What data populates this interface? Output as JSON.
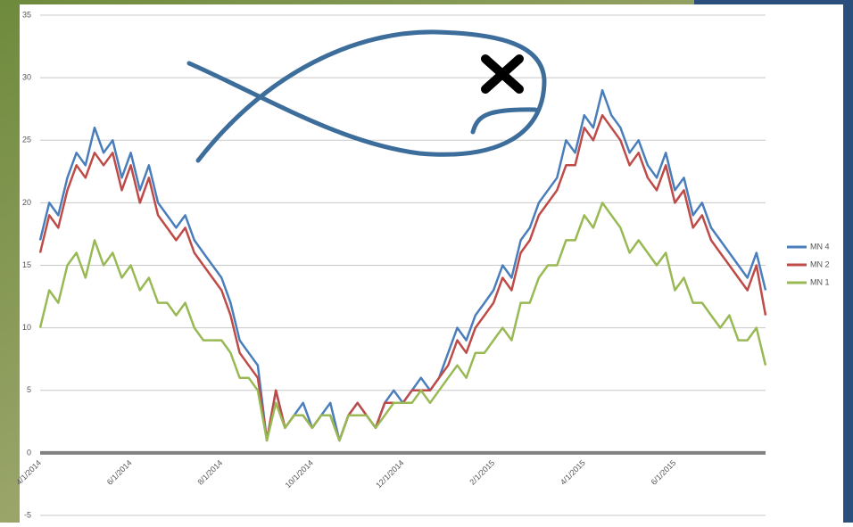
{
  "chart_data": {
    "type": "line",
    "categories": [
      "4/1/2014",
      null,
      null,
      null,
      null,
      null,
      null,
      null,
      null,
      null,
      "6/1/2014",
      null,
      null,
      null,
      null,
      null,
      null,
      null,
      null,
      null,
      "8/1/2014",
      null,
      null,
      null,
      null,
      null,
      null,
      null,
      null,
      null,
      "10/1/2014",
      null,
      null,
      null,
      null,
      null,
      null,
      null,
      null,
      null,
      "12/1/2014",
      null,
      null,
      null,
      null,
      null,
      null,
      null,
      null,
      null,
      "2/1/2015",
      null,
      null,
      null,
      null,
      null,
      null,
      null,
      null,
      null,
      "4/1/2015",
      null,
      null,
      null,
      null,
      null,
      null,
      null,
      null,
      null,
      "6/1/2015",
      null,
      null,
      null,
      null,
      null,
      null,
      null,
      null,
      null,
      null
    ],
    "series": [
      {
        "name": "MN 4",
        "color": "#4a7ebb",
        "values": [
          17,
          20,
          19,
          22,
          24,
          23,
          26,
          24,
          25,
          22,
          24,
          21,
          23,
          20,
          19,
          18,
          19,
          17,
          16,
          15,
          14,
          12,
          9,
          8,
          7,
          1,
          5,
          2,
          3,
          4,
          2,
          3,
          4,
          1,
          3,
          4,
          3,
          2,
          4,
          5,
          4,
          5,
          6,
          5,
          6,
          8,
          10,
          9,
          11,
          12,
          13,
          15,
          14,
          17,
          18,
          20,
          21,
          22,
          25,
          24,
          27,
          26,
          29,
          27,
          26,
          24,
          25,
          23,
          22,
          24,
          21,
          22,
          19,
          20,
          18,
          17,
          16,
          15,
          14,
          16,
          13
        ]
      },
      {
        "name": "MN 2",
        "color": "#be4b48",
        "values": [
          16,
          19,
          18,
          21,
          23,
          22,
          24,
          23,
          24,
          21,
          23,
          20,
          22,
          19,
          18,
          17,
          18,
          16,
          15,
          14,
          13,
          11,
          8,
          7,
          6,
          1,
          5,
          2,
          3,
          3,
          2,
          3,
          3,
          1,
          3,
          4,
          3,
          2,
          4,
          4,
          4,
          5,
          5,
          5,
          6,
          7,
          9,
          8,
          10,
          11,
          12,
          14,
          13,
          16,
          17,
          19,
          20,
          21,
          23,
          23,
          26,
          25,
          27,
          26,
          25,
          23,
          24,
          22,
          21,
          23,
          20,
          21,
          18,
          19,
          17,
          16,
          15,
          14,
          13,
          15,
          11
        ]
      },
      {
        "name": "MN 1",
        "color": "#98b954",
        "values": [
          10,
          13,
          12,
          15,
          16,
          14,
          17,
          15,
          16,
          14,
          15,
          13,
          14,
          12,
          12,
          11,
          12,
          10,
          9,
          9,
          9,
          8,
          6,
          6,
          5,
          1,
          4,
          2,
          3,
          3,
          2,
          3,
          3,
          1,
          3,
          3,
          3,
          2,
          3,
          4,
          4,
          4,
          5,
          4,
          5,
          6,
          7,
          6,
          8,
          8,
          9,
          10,
          9,
          12,
          12,
          14,
          15,
          15,
          17,
          17,
          19,
          18,
          20,
          19,
          18,
          16,
          17,
          16,
          15,
          16,
          13,
          14,
          12,
          12,
          11,
          10,
          11,
          9,
          9,
          10,
          7
        ]
      }
    ],
    "ylim": [
      -5,
      35
    ],
    "yticks": [
      -5,
      0,
      5,
      10,
      15,
      20,
      25,
      30,
      35
    ],
    "grid": true,
    "legend": "right"
  }
}
